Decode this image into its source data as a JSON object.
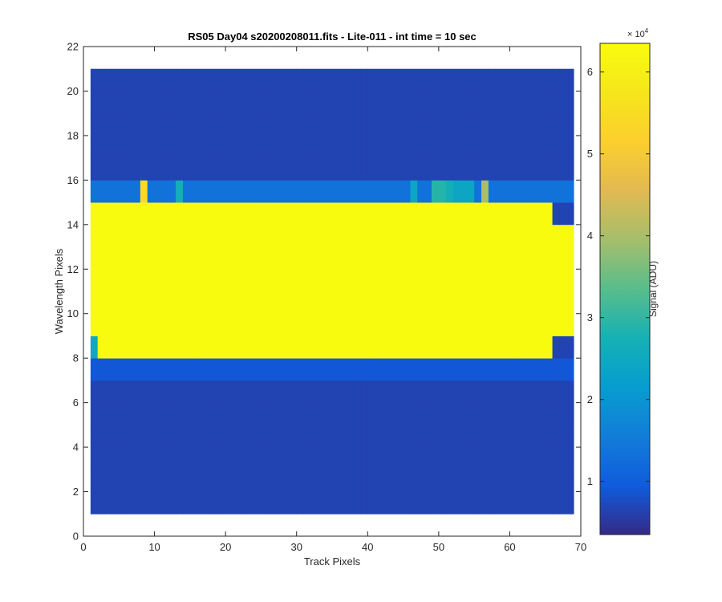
{
  "chart_data": {
    "type": "heatmap",
    "title": "RS05 Day04  s20200208011.fits - Lite-011 - int time = 10 sec",
    "xlabel": "Track Pixels",
    "ylabel": "Wavelength Pixels",
    "xlim": [
      0,
      70
    ],
    "ylim": [
      0,
      22
    ],
    "xticks": [
      "0",
      "10",
      "20",
      "30",
      "40",
      "50",
      "60",
      "70"
    ],
    "yticks": [
      "0",
      "2",
      "4",
      "6",
      "8",
      "10",
      "12",
      "14",
      "16",
      "18",
      "20",
      "22"
    ],
    "data_extent": {
      "x": [
        1,
        69
      ],
      "y": [
        1,
        21
      ]
    },
    "colorbar": {
      "label": "Signal (ADU)",
      "exponent_base": "× 10",
      "exponent_power": "4",
      "ticks": [
        "1",
        "2",
        "3",
        "4",
        "5",
        "6"
      ],
      "tick_values": [
        10000,
        20000,
        30000,
        40000,
        50000,
        60000
      ],
      "range": [
        3500,
        63500
      ],
      "colormap": "parula"
    },
    "background_value": 6500,
    "bright_band": {
      "rows": [
        8,
        15
      ],
      "cols": [
        1,
        66
      ],
      "value": 63500
    },
    "right_edge_band": {
      "rows": [
        9,
        14
      ],
      "cols": [
        66,
        69
      ],
      "value": 63500
    },
    "dim_rows": [
      {
        "row": 15,
        "value": 13500
      },
      {
        "row": 7,
        "value": 9000
      }
    ],
    "row_column_values": [
      {
        "row": 15,
        "col": 8,
        "value": 55000
      },
      {
        "row": 15,
        "col": 13,
        "value": 27000
      },
      {
        "row": 15,
        "col": 46,
        "value": 24000
      },
      {
        "row": 15,
        "col": 49,
        "value": 29000
      },
      {
        "row": 15,
        "col": 50,
        "value": 29000
      },
      {
        "row": 15,
        "col": 51,
        "value": 27000
      },
      {
        "row": 15,
        "col": 52,
        "value": 24000
      },
      {
        "row": 15,
        "col": 53,
        "value": 24000
      },
      {
        "row": 15,
        "col": 54,
        "value": 24000
      },
      {
        "row": 15,
        "col": 56,
        "value": 40000
      },
      {
        "row": 8,
        "col": 1,
        "value": 25000
      }
    ]
  }
}
